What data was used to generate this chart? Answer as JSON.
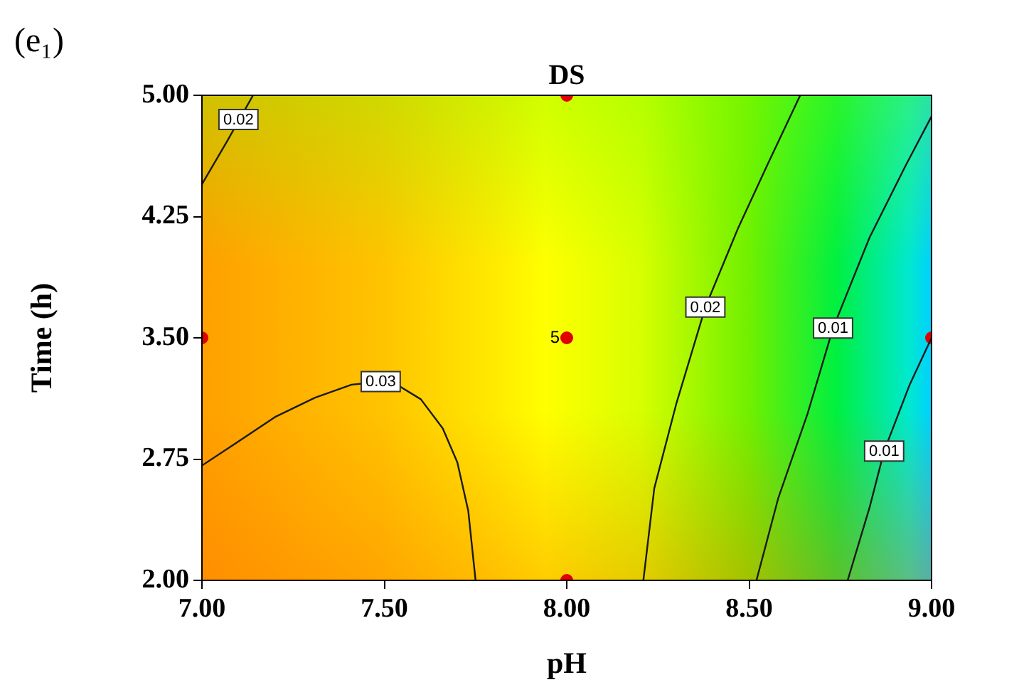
{
  "chart_data": {
    "type": "line",
    "title": "DS",
    "xlabel": "pH",
    "ylabel": "Time (h)",
    "xlim": [
      7,
      9
    ],
    "xticks": [
      {
        "value": 7,
        "label": "7.00"
      },
      {
        "value": 7.5,
        "label": "7.50"
      },
      {
        "value": 8,
        "label": "8.00"
      },
      {
        "value": 8.5,
        "label": "8.50"
      },
      {
        "value": 9,
        "label": "9.00"
      }
    ],
    "ylim": [
      2,
      5
    ],
    "yticks": [
      {
        "value": 2,
        "label": "2.00"
      },
      {
        "value": 2.75,
        "label": "2.75"
      },
      {
        "value": 3.5,
        "label": "3.50"
      },
      {
        "value": 4.25,
        "label": "4.25"
      },
      {
        "value": 5,
        "label": "5.00"
      }
    ],
    "grid": false,
    "legend": false,
    "line_style": "solid",
    "series": [
      {
        "type": "line",
        "marker": "none",
        "color": "#1a1a1a",
        "x": [
          7.0,
          7.094,
          7.2,
          7.31,
          7.41,
          7.49,
          7.535,
          7.6,
          7.66,
          7.7,
          7.73,
          7.75
        ],
        "values": [
          2.71,
          2.85,
          3.01,
          3.13,
          3.21,
          3.23,
          3.21,
          3.12,
          2.94,
          2.73,
          2.43,
          2.0
        ]
      },
      {
        "type": "line",
        "marker": "none",
        "color": "#1a1a1a",
        "x": [
          7.0,
          7.07,
          7.14
        ],
        "values": [
          4.45,
          4.72,
          5.0
        ]
      },
      {
        "type": "line",
        "marker": "none",
        "color": "#1a1a1a",
        "x": [
          8.21,
          8.24,
          8.3,
          8.38,
          8.47,
          8.55,
          8.64
        ],
        "values": [
          2.0,
          2.57,
          3.09,
          3.69,
          4.18,
          4.57,
          5.0
        ]
      },
      {
        "type": "line",
        "marker": "none",
        "color": "#1a1a1a",
        "x": [
          8.52,
          8.58,
          8.66,
          8.73,
          8.83,
          8.93,
          9.0
        ],
        "values": [
          2.0,
          2.51,
          3.03,
          3.56,
          4.12,
          4.57,
          4.87
        ]
      },
      {
        "type": "line",
        "marker": "none",
        "color": "#1a1a1a",
        "x": [
          8.77,
          8.83,
          8.87,
          8.94,
          9.0
        ],
        "values": [
          2.0,
          2.45,
          2.8,
          3.21,
          3.5
        ]
      },
      {
        "type": "scatter",
        "marker": "circle",
        "color": "#e00000",
        "x": [
          7,
          8,
          8,
          8,
          9
        ],
        "values": [
          3.5,
          2,
          3.5,
          5,
          3.5
        ]
      }
    ],
    "annotations": [
      "(e₁)",
      {
        "text": "5",
        "x": 8,
        "y": 3.5
      },
      {
        "text": "0.03",
        "x": 7.49,
        "y": 3.23
      },
      {
        "text": "0.02",
        "x": 7.1,
        "y": 4.85
      },
      {
        "text": "0.02",
        "x": 8.38,
        "y": 3.69
      },
      {
        "text": "0.01",
        "x": 8.73,
        "y": 3.56
      },
      {
        "text": "0.01",
        "x": 8.87,
        "y": 2.8
      }
    ]
  }
}
